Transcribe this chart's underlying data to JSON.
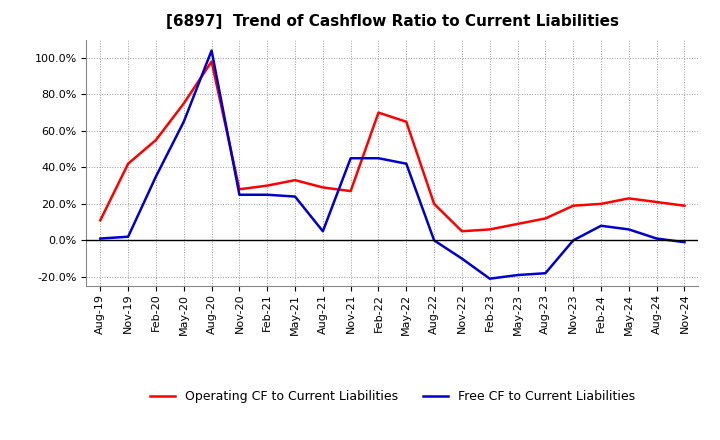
{
  "title": "[6897]  Trend of Cashflow Ratio to Current Liabilities",
  "x_labels": [
    "Aug-19",
    "Nov-19",
    "Feb-20",
    "May-20",
    "Aug-20",
    "Nov-20",
    "Feb-21",
    "May-21",
    "Aug-21",
    "Nov-21",
    "Feb-22",
    "May-22",
    "Aug-22",
    "Nov-22",
    "Feb-23",
    "May-23",
    "Aug-23",
    "Nov-23",
    "Feb-24",
    "May-24",
    "Aug-24",
    "Nov-24"
  ],
  "operating_cf": [
    0.11,
    0.42,
    0.55,
    0.75,
    0.98,
    0.28,
    0.3,
    0.33,
    0.29,
    0.27,
    0.7,
    0.65,
    0.2,
    0.05,
    0.06,
    0.09,
    0.12,
    0.19,
    0.2,
    0.23,
    0.21,
    0.19
  ],
  "free_cf": [
    0.01,
    0.02,
    0.35,
    0.65,
    1.04,
    0.25,
    0.25,
    0.24,
    0.05,
    0.45,
    0.45,
    0.42,
    0.0,
    -0.1,
    -0.21,
    -0.19,
    -0.18,
    0.0,
    0.08,
    0.06,
    0.01,
    -0.01
  ],
  "operating_color": "#ff0000",
  "free_color": "#0000cc",
  "ylim": [
    -0.25,
    1.1
  ],
  "yticks": [
    -0.2,
    0.0,
    0.2,
    0.4,
    0.6,
    0.8,
    1.0
  ],
  "legend_operating": "Operating CF to Current Liabilities",
  "legend_free": "Free CF to Current Liabilities",
  "background_color": "#ffffff",
  "grid_color": "#999999",
  "linewidth": 1.8,
  "title_fontsize": 11,
  "tick_fontsize": 8,
  "legend_fontsize": 9
}
